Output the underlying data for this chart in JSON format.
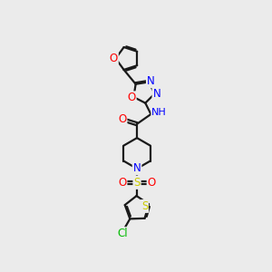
{
  "bg_color": "#ebebeb",
  "bond_color": "#1a1a1a",
  "atom_colors": {
    "O": "#ff0000",
    "N": "#0000ff",
    "S": "#cccc00",
    "Cl": "#00bb00",
    "H": "#808080",
    "C": "#1a1a1a"
  },
  "figsize": [
    3.0,
    3.0
  ],
  "dpi": 100
}
